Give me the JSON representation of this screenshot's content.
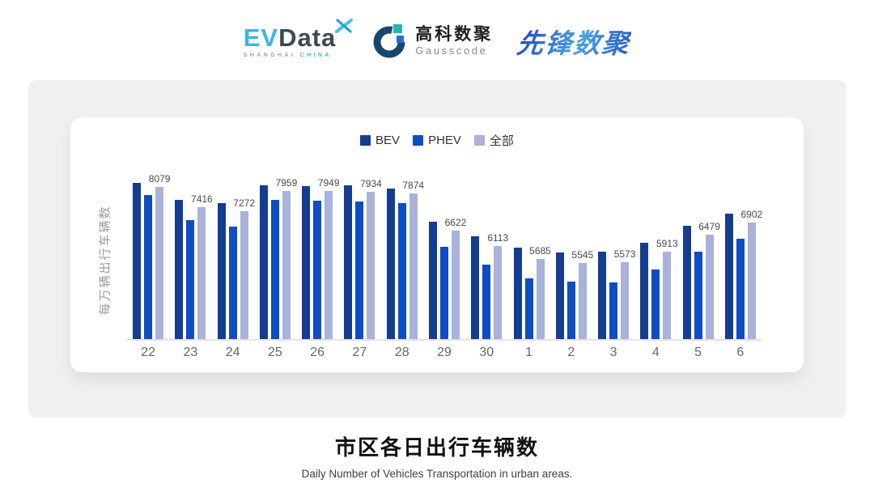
{
  "header": {
    "evdata_logo": {
      "part1": "EV",
      "part2": "Data",
      "sub1": "SHANGHAI",
      "sub2": "CHINA",
      "mark": "crossed-wings-x-icon"
    },
    "gausscode_logo": {
      "name_cn": "高科数聚",
      "name_en": "Gausscode",
      "mark": "g-arc-squares-icon"
    },
    "pioneer_logo": {
      "name_cn": "先锋数聚"
    }
  },
  "chart_data": {
    "type": "bar",
    "title": "市区各日出行车辆数",
    "subtitle": "Daily Number of Vehicles Transportation in urban areas.",
    "value_axis_label": "每万辆出行车辆数",
    "categories": [
      "22",
      "23",
      "24",
      "25",
      "26",
      "27",
      "28",
      "29",
      "30",
      "1",
      "2",
      "3",
      "4",
      "5",
      "6"
    ],
    "series": [
      {
        "name": "BEV",
        "color": "#143d92",
        "values": [
          8230,
          7640,
          7530,
          8150,
          8120,
          8140,
          8040,
          6910,
          6430,
          6050,
          5880,
          5920,
          6210,
          6780,
          7190
        ],
        "data_labels": false
      },
      {
        "name": "PHEV",
        "color": "#0f4dc4",
        "values": [
          7820,
          6980,
          6760,
          7640,
          7620,
          7600,
          7530,
          6080,
          5500,
          5020,
          4910,
          4890,
          5320,
          5920,
          6360
        ],
        "data_labels": false
      },
      {
        "name": "全部",
        "color": "#a8b2db",
        "values": [
          8079,
          7416,
          7272,
          7959,
          7949,
          7934,
          7874,
          6622,
          6113,
          5685,
          5545,
          5573,
          5913,
          6479,
          6902
        ],
        "data_labels": true
      }
    ],
    "legend": [
      "BEV",
      "PHEV",
      "全部"
    ],
    "legend_position": "top",
    "grid": false,
    "value_axis_range": [
      3000,
      8300
    ],
    "labeled_series": "全部"
  }
}
